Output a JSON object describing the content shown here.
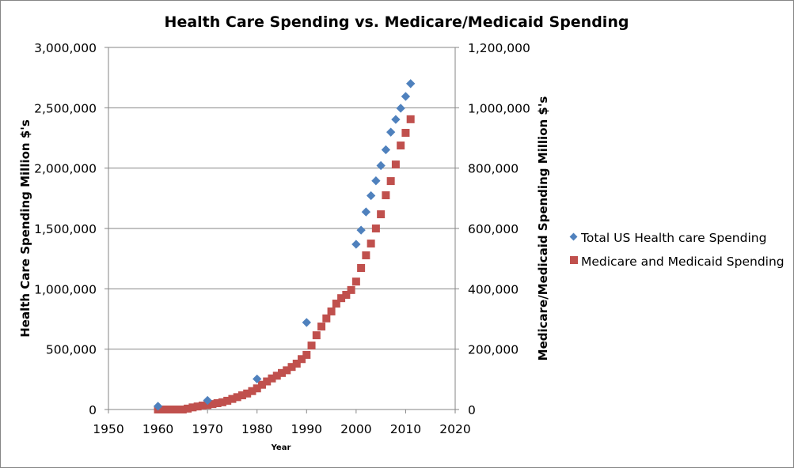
{
  "chart_data": {
    "type": "scatter",
    "title": "Health Care Spending vs. Medicare/Medicaid Spending",
    "xlabel": "Year",
    "ylabel": "Health Care Spending Million $'s",
    "y2label": "Medicare/Medicaid Spending Million $'s",
    "xlim": [
      1950,
      2020
    ],
    "ylim": [
      0,
      3000000
    ],
    "y2lim": [
      0,
      1200000
    ],
    "x_ticks": [
      "1950",
      "1960",
      "1970",
      "1980",
      "1990",
      "2000",
      "2010",
      "2020"
    ],
    "y_ticks": [
      "0",
      "500,000",
      "1,000,000",
      "1,500,000",
      "2,000,000",
      "2,500,000",
      "3,000,000"
    ],
    "y2_ticks": [
      "0",
      "200,000",
      "400,000",
      "600,000",
      "800,000",
      "1,000,000",
      "1,200,000"
    ],
    "grid": true,
    "legend_position": "right",
    "series": [
      {
        "name": "Total US Health care Spending",
        "axis": "left",
        "marker": "diamond",
        "color": "#4F81BD",
        "points": [
          [
            1960,
            27000
          ],
          [
            1970,
            75000
          ],
          [
            1980,
            253000
          ],
          [
            1990,
            721000
          ],
          [
            2000,
            1369000
          ],
          [
            2001,
            1486000
          ],
          [
            2002,
            1637000
          ],
          [
            2003,
            1772000
          ],
          [
            2004,
            1895000
          ],
          [
            2005,
            2021000
          ],
          [
            2006,
            2152000
          ],
          [
            2007,
            2298000
          ],
          [
            2008,
            2403000
          ],
          [
            2009,
            2496000
          ],
          [
            2010,
            2594000
          ],
          [
            2011,
            2700000
          ]
        ]
      },
      {
        "name": "Medicare and Medicaid Spending",
        "axis": "right",
        "marker": "square",
        "color": "#C0504D",
        "points": [
          [
            1960,
            0
          ],
          [
            1961,
            0
          ],
          [
            1962,
            0
          ],
          [
            1963,
            0
          ],
          [
            1964,
            0
          ],
          [
            1965,
            0
          ],
          [
            1966,
            3000
          ],
          [
            1967,
            7000
          ],
          [
            1968,
            10000
          ],
          [
            1969,
            13000
          ],
          [
            1970,
            15000
          ],
          [
            1971,
            18000
          ],
          [
            1972,
            21000
          ],
          [
            1973,
            24000
          ],
          [
            1974,
            29000
          ],
          [
            1975,
            35000
          ],
          [
            1976,
            41000
          ],
          [
            1977,
            47000
          ],
          [
            1978,
            53000
          ],
          [
            1979,
            61000
          ],
          [
            1980,
            70000
          ],
          [
            1981,
            82000
          ],
          [
            1982,
            93000
          ],
          [
            1983,
            103000
          ],
          [
            1984,
            112000
          ],
          [
            1985,
            121000
          ],
          [
            1986,
            130000
          ],
          [
            1987,
            141000
          ],
          [
            1988,
            152000
          ],
          [
            1989,
            167000
          ],
          [
            1990,
            181000
          ],
          [
            1991,
            212000
          ],
          [
            1992,
            246000
          ],
          [
            1993,
            275000
          ],
          [
            1994,
            302000
          ],
          [
            1995,
            325000
          ],
          [
            1996,
            351000
          ],
          [
            1997,
            369000
          ],
          [
            1998,
            380000
          ],
          [
            1999,
            396000
          ],
          [
            2000,
            424000
          ],
          [
            2001,
            469000
          ],
          [
            2002,
            511000
          ],
          [
            2003,
            550000
          ],
          [
            2004,
            600000
          ],
          [
            2005,
            647000
          ],
          [
            2006,
            710000
          ],
          [
            2007,
            757000
          ],
          [
            2008,
            812000
          ],
          [
            2009,
            875000
          ],
          [
            2010,
            917000
          ],
          [
            2011,
            962000
          ]
        ]
      }
    ]
  }
}
